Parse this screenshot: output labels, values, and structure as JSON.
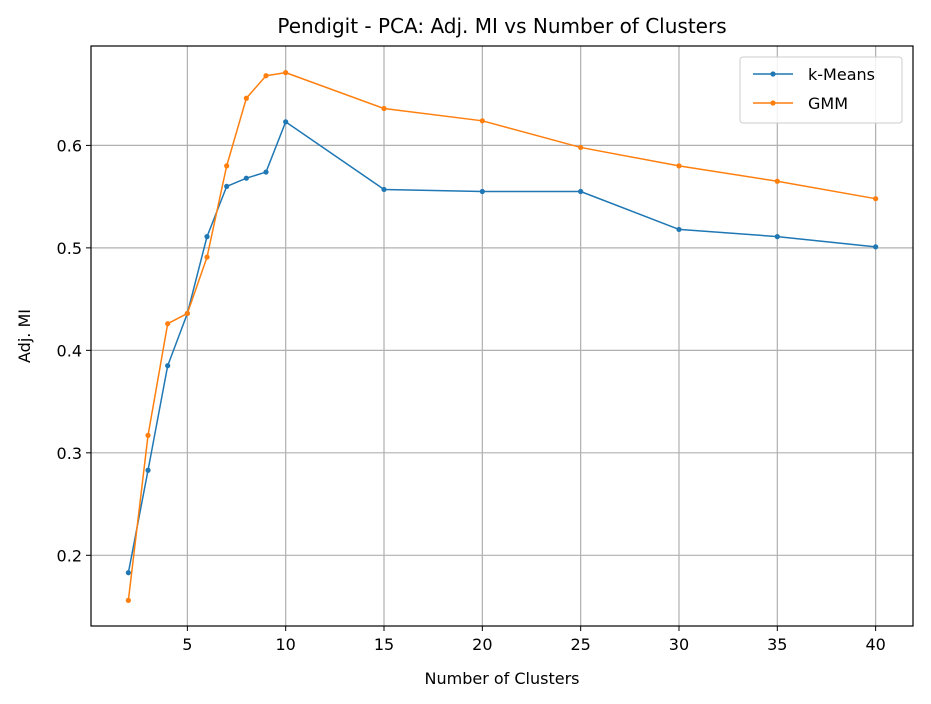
{
  "chart_data": {
    "type": "line",
    "title": "Pendigit - PCA: Adj. MI vs Number of Clusters",
    "xlabel": "Number of Clusters",
    "ylabel": "Adj. MI",
    "x": [
      2,
      3,
      4,
      5,
      6,
      7,
      8,
      9,
      10,
      15,
      20,
      25,
      30,
      35,
      40
    ],
    "xticks": [
      5,
      10,
      15,
      20,
      25,
      30,
      35,
      40
    ],
    "yticks": [
      0.2,
      0.3,
      0.4,
      0.5,
      0.6
    ],
    "xlim": [
      0.1,
      41.9
    ],
    "ylim": [
      0.131,
      0.697
    ],
    "grid": true,
    "legend_position": "top-right",
    "series": [
      {
        "name": "k-Means",
        "color": "#1f77b4",
        "values": [
          0.183,
          0.283,
          0.385,
          0.436,
          0.511,
          0.56,
          0.568,
          0.574,
          0.623,
          0.557,
          0.555,
          0.555,
          0.518,
          0.511,
          0.501
        ]
      },
      {
        "name": "GMM",
        "color": "#ff7f0e",
        "values": [
          0.156,
          0.317,
          0.426,
          0.436,
          0.491,
          0.58,
          0.646,
          0.668,
          0.671,
          0.636,
          0.624,
          0.598,
          0.58,
          0.565,
          0.548
        ]
      }
    ]
  }
}
